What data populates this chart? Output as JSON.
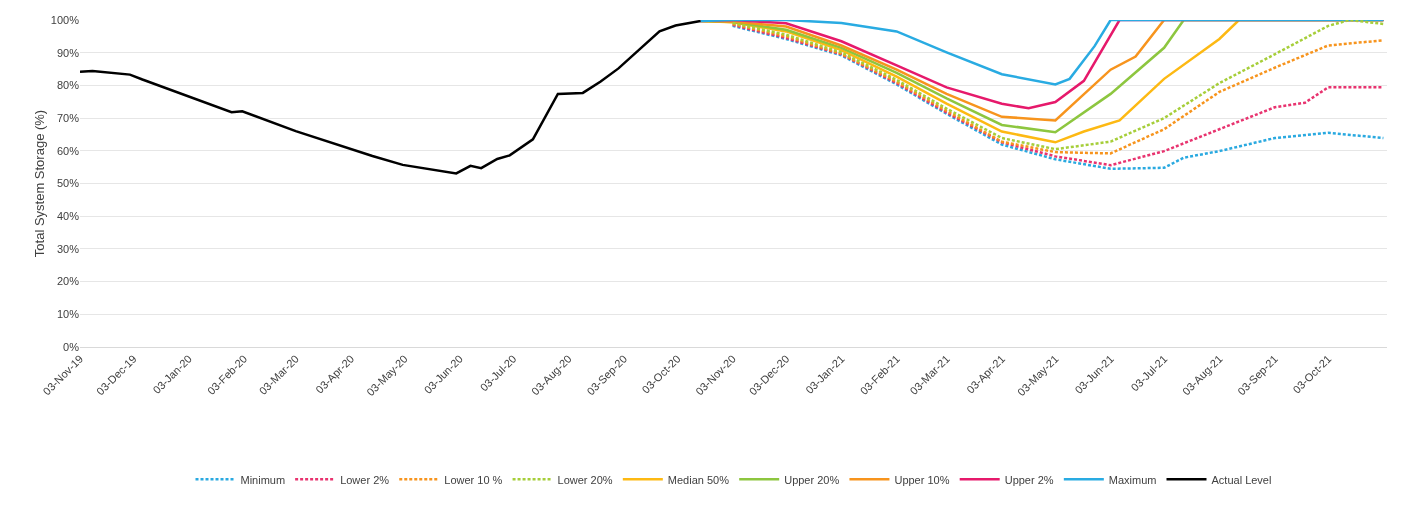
{
  "chart_data": {
    "type": "line",
    "ylabel": "Total System Storage (%)",
    "xlim": [
      "2019-11-03",
      "2021-11-05"
    ],
    "xticks": [
      {
        "value": "2019-11-03",
        "label": "03-Nov-19"
      },
      {
        "value": "2019-12-03",
        "label": "03-Dec-19"
      },
      {
        "value": "2020-01-03",
        "label": "03-Jan-20"
      },
      {
        "value": "2020-02-03",
        "label": "03-Feb-20"
      },
      {
        "value": "2020-03-03",
        "label": "03-Mar-20"
      },
      {
        "value": "2020-04-03",
        "label": "03-Apr-20"
      },
      {
        "value": "2020-05-03",
        "label": "03-May-20"
      },
      {
        "value": "2020-06-03",
        "label": "03-Jun-20"
      },
      {
        "value": "2020-07-03",
        "label": "03-Jul-20"
      },
      {
        "value": "2020-08-03",
        "label": "03-Aug-20"
      },
      {
        "value": "2020-09-03",
        "label": "03-Sep-20"
      },
      {
        "value": "2020-10-03",
        "label": "03-Oct-20"
      },
      {
        "value": "2020-11-03",
        "label": "03-Nov-20"
      },
      {
        "value": "2020-12-03",
        "label": "03-Dec-20"
      },
      {
        "value": "2021-01-03",
        "label": "03-Jan-21"
      },
      {
        "value": "2021-02-03",
        "label": "03-Feb-21"
      },
      {
        "value": "2021-03-03",
        "label": "03-Mar-21"
      },
      {
        "value": "2021-04-03",
        "label": "03-Apr-21"
      },
      {
        "value": "2021-05-03",
        "label": "03-May-21"
      },
      {
        "value": "2021-06-03",
        "label": "03-Jun-21"
      },
      {
        "value": "2021-07-03",
        "label": "03-Jul-21"
      },
      {
        "value": "2021-08-03",
        "label": "03-Aug-21"
      },
      {
        "value": "2021-09-03",
        "label": "03-Sep-21"
      },
      {
        "value": "2021-10-03",
        "label": "03-Oct-21"
      }
    ],
    "ylim": [
      0,
      100
    ],
    "yticks": [
      {
        "value": 0,
        "label": "0%"
      },
      {
        "value": 10,
        "label": "10%"
      },
      {
        "value": 20,
        "label": "20%"
      },
      {
        "value": 30,
        "label": "30%"
      },
      {
        "value": 40,
        "label": "40%"
      },
      {
        "value": 50,
        "label": "50%"
      },
      {
        "value": 60,
        "label": "60%"
      },
      {
        "value": 70,
        "label": "70%"
      },
      {
        "value": 80,
        "label": "80%"
      },
      {
        "value": 90,
        "label": "90%"
      },
      {
        "value": 100,
        "label": "100%"
      }
    ],
    "grid": "y",
    "legend": "bottom",
    "marker": "none",
    "series": [
      {
        "name": "Minimum",
        "color": "#29a9e0",
        "line_style": "dashed",
        "x": [
          "2020-11-03",
          "2020-12-03",
          "2021-01-03",
          "2021-02-03",
          "2021-03-03",
          "2021-04-03",
          "2021-05-03",
          "2021-06-03",
          "2021-07-03",
          "2021-07-14",
          "2021-08-03",
          "2021-09-03",
          "2021-10-03",
          "2021-11-03"
        ],
        "values": [
          98.2,
          94.2,
          89.2,
          80.3,
          71.3,
          61.9,
          57.4,
          54.5,
          54.8,
          57.9,
          59.9,
          63.9,
          65.5,
          63.9
        ]
      },
      {
        "name": "Lower 2%",
        "color": "#e8336f",
        "line_style": "dashed",
        "x": [
          "2020-11-03",
          "2020-12-03",
          "2021-01-03",
          "2021-02-03",
          "2021-03-03",
          "2021-04-03",
          "2021-05-03",
          "2021-06-03",
          "2021-07-03",
          "2021-08-03",
          "2021-09-03",
          "2021-09-20",
          "2021-10-03",
          "2021-11-03"
        ],
        "values": [
          98.5,
          94.5,
          89.5,
          80.7,
          71.7,
          62.6,
          58.3,
          55.6,
          59.9,
          66.6,
          73.3,
          74.7,
          79.4,
          79.4
        ]
      },
      {
        "name": "Lower 10 %",
        "color": "#f7941d",
        "line_style": "dashed",
        "x": [
          "2020-11-03",
          "2020-12-03",
          "2021-01-03",
          "2021-02-03",
          "2021-03-03",
          "2021-04-03",
          "2021-05-03",
          "2021-06-03",
          "2021-07-03",
          "2021-08-03",
          "2021-09-03",
          "2021-10-03",
          "2021-11-03"
        ],
        "values": [
          98.8,
          95,
          89.7,
          81.1,
          72.2,
          62.8,
          59.6,
          59.2,
          66.6,
          78,
          85.4,
          92.2,
          93.8
        ]
      },
      {
        "name": "Lower 20%",
        "color": "#a6ce39",
        "line_style": "dashed",
        "x": [
          "2020-11-03",
          "2020-12-03",
          "2021-01-03",
          "2021-02-03",
          "2021-03-03",
          "2021-04-03",
          "2021-05-03",
          "2021-06-03",
          "2021-07-03",
          "2021-08-03",
          "2021-09-03",
          "2021-10-03",
          "2021-10-15",
          "2021-11-03"
        ],
        "values": [
          99.1,
          95.5,
          90.1,
          81.7,
          72.9,
          63.9,
          60.5,
          62.8,
          70,
          80.7,
          89.5,
          98.2,
          100,
          98.8
        ]
      },
      {
        "name": "Median 50%",
        "color": "#fdb913",
        "line_style": "solid",
        "x": [
          "2020-10-16",
          "2020-11-03",
          "2020-12-03",
          "2021-01-03",
          "2021-02-03",
          "2021-03-03",
          "2021-04-03",
          "2021-05-03",
          "2021-05-19",
          "2021-06-08",
          "2021-07-03",
          "2021-08-03",
          "2021-08-14",
          "2021-11-03"
        ],
        "values": [
          99.7,
          99.3,
          96.5,
          90.8,
          82.7,
          74.4,
          65.9,
          62.6,
          65.9,
          69.3,
          82,
          94.2,
          100,
          100
        ]
      },
      {
        "name": "Upper 20%",
        "color": "#8dc63f",
        "line_style": "solid",
        "x": [
          "2020-10-16",
          "2020-11-03",
          "2020-12-03",
          "2021-01-03",
          "2021-02-03",
          "2021-03-03",
          "2021-04-03",
          "2021-05-03",
          "2021-06-03",
          "2021-07-03",
          "2021-07-14",
          "2021-11-03"
        ],
        "values": [
          99.7,
          99.4,
          97,
          91.5,
          83.8,
          76,
          67.9,
          65.7,
          77.4,
          91.5,
          100,
          100
        ]
      },
      {
        "name": "Upper 10%",
        "color": "#f7941d",
        "line_style": "solid",
        "x": [
          "2020-10-16",
          "2020-11-03",
          "2020-12-03",
          "2021-01-03",
          "2021-02-03",
          "2021-03-03",
          "2021-04-03",
          "2021-05-03",
          "2021-06-03",
          "2021-06-17",
          "2021-07-03",
          "2021-11-03"
        ],
        "values": [
          99.7,
          99.5,
          98,
          92.2,
          84.8,
          77.4,
          70.4,
          69.3,
          84.8,
          88.8,
          100,
          100
        ]
      },
      {
        "name": "Upper 2%",
        "color": "#e6196b",
        "line_style": "solid",
        "x": [
          "2020-10-16",
          "2020-11-03",
          "2020-12-03",
          "2021-01-03",
          "2021-02-03",
          "2021-03-03",
          "2021-04-03",
          "2021-04-18",
          "2021-05-03",
          "2021-05-19",
          "2021-06-08",
          "2021-11-03"
        ],
        "values": [
          99.7,
          100,
          99,
          93.5,
          86.1,
          79.4,
          74.4,
          73,
          74.9,
          81.4,
          100,
          100
        ]
      },
      {
        "name": "Maximum",
        "color": "#29abe2",
        "line_style": "solid",
        "x": [
          "2020-10-16",
          "2020-11-03",
          "2020-12-03",
          "2021-01-03",
          "2021-02-03",
          "2021-03-03",
          "2021-04-03",
          "2021-05-03",
          "2021-05-11",
          "2021-05-25",
          "2021-06-03",
          "2021-11-03"
        ],
        "values": [
          99.7,
          100,
          100,
          99.1,
          96.5,
          90.1,
          83.4,
          80.3,
          82,
          92,
          100,
          100
        ]
      },
      {
        "name": "Actual Level",
        "color": "#000000",
        "line_style": "solid",
        "x": [
          "2019-11-03",
          "2019-11-10",
          "2019-12-01",
          "2019-12-08",
          "2020-01-27",
          "2020-02-02",
          "2020-03-03",
          "2020-04-15",
          "2020-05-02",
          "2020-06-01",
          "2020-06-09",
          "2020-06-15",
          "2020-06-24",
          "2020-07-01",
          "2020-07-14",
          "2020-07-28",
          "2020-08-11",
          "2020-08-21",
          "2020-08-31",
          "2020-09-23",
          "2020-10-02",
          "2020-10-16"
        ],
        "values": [
          84.2,
          84.4,
          83.3,
          81.8,
          71.8,
          72.1,
          66,
          58.4,
          55.7,
          53.1,
          55.4,
          54.7,
          57.5,
          58.6,
          63.5,
          77.4,
          77.7,
          81.2,
          85.2,
          96.5,
          98.3,
          99.7
        ]
      }
    ]
  }
}
